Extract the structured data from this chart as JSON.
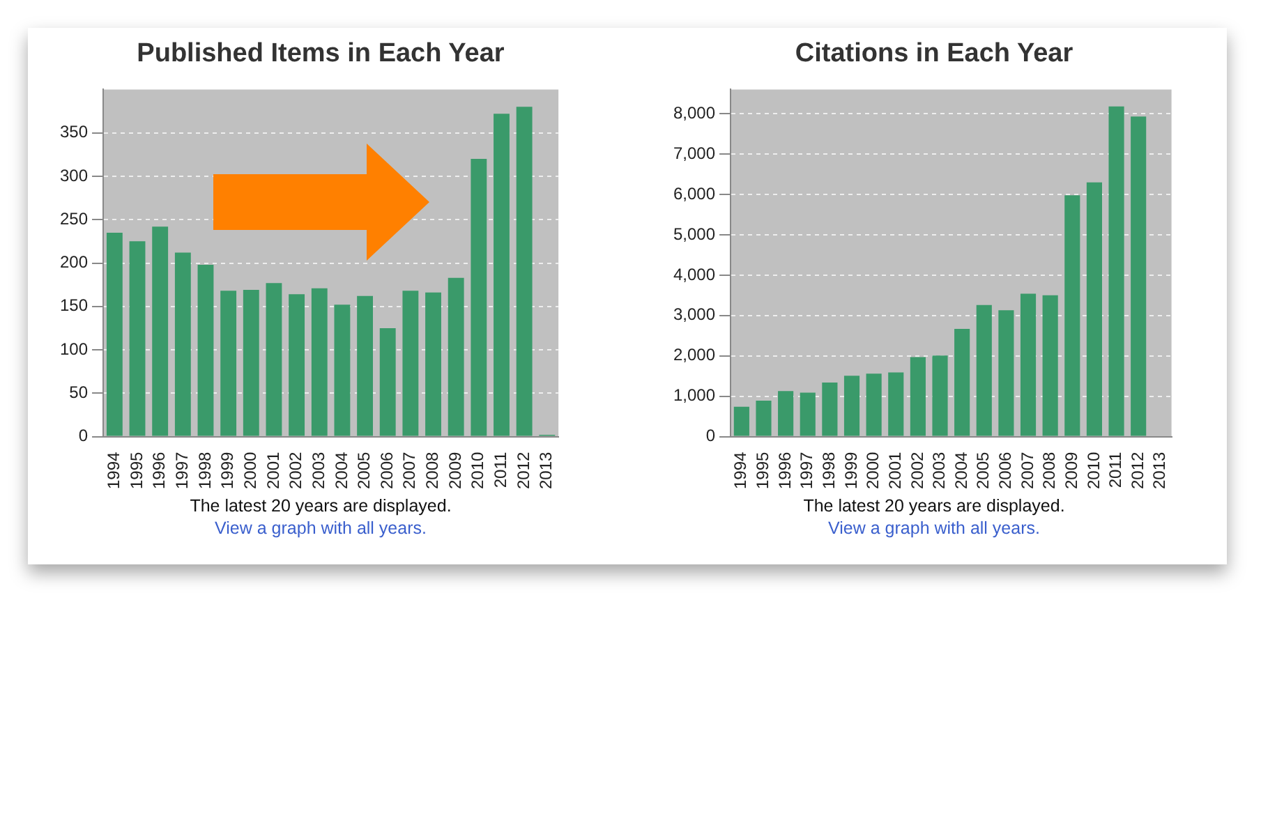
{
  "chart_data": [
    {
      "type": "bar",
      "title": "Published Items in Each Year",
      "categories": [
        "1994",
        "1995",
        "1996",
        "1997",
        "1998",
        "1999",
        "2000",
        "2001",
        "2002",
        "2003",
        "2004",
        "2005",
        "2006",
        "2007",
        "2008",
        "2009",
        "2010",
        "2011",
        "2012",
        "2013"
      ],
      "values": [
        235,
        225,
        242,
        212,
        198,
        168,
        169,
        177,
        164,
        171,
        152,
        162,
        125,
        168,
        166,
        183,
        320,
        372,
        380,
        2
      ],
      "color": "#3a9a6a",
      "ylim": [
        0,
        400
      ],
      "yticks": [
        0,
        50,
        100,
        150,
        200,
        250,
        300,
        350
      ],
      "grid": "y",
      "annotations": [
        "The latest 20 years are displayed.",
        "View a graph with all years."
      ]
    },
    {
      "type": "bar",
      "title": "Citations in Each Year",
      "categories": [
        "1994",
        "1995",
        "1996",
        "1997",
        "1998",
        "1999",
        "2000",
        "2001",
        "2002",
        "2003",
        "2004",
        "2005",
        "2006",
        "2007",
        "2008",
        "2009",
        "2010",
        "2011",
        "2012",
        "2013"
      ],
      "values": [
        740,
        890,
        1130,
        1090,
        1340,
        1510,
        1560,
        1590,
        1970,
        2010,
        2670,
        3260,
        3130,
        3540,
        3500,
        5980,
        6300,
        8180,
        7930,
        0
      ],
      "color": "#3a9a6a",
      "ylim": [
        0,
        8600
      ],
      "yticks": [
        {
          "value": 0,
          "label": "0"
        },
        {
          "value": 1000,
          "label": "1,000"
        },
        {
          "value": 2000,
          "label": "2,000"
        },
        {
          "value": 3000,
          "label": "3,000"
        },
        {
          "value": 4000,
          "label": "4,000"
        },
        {
          "value": 5000,
          "label": "5,000"
        },
        {
          "value": 6000,
          "label": "6,000"
        },
        {
          "value": 7000,
          "label": "7,000"
        },
        {
          "value": 8000,
          "label": "8,000"
        }
      ],
      "grid": "y",
      "annotations": [
        "The latest 20 years are displayed.",
        "View a graph with all years."
      ]
    }
  ]
}
